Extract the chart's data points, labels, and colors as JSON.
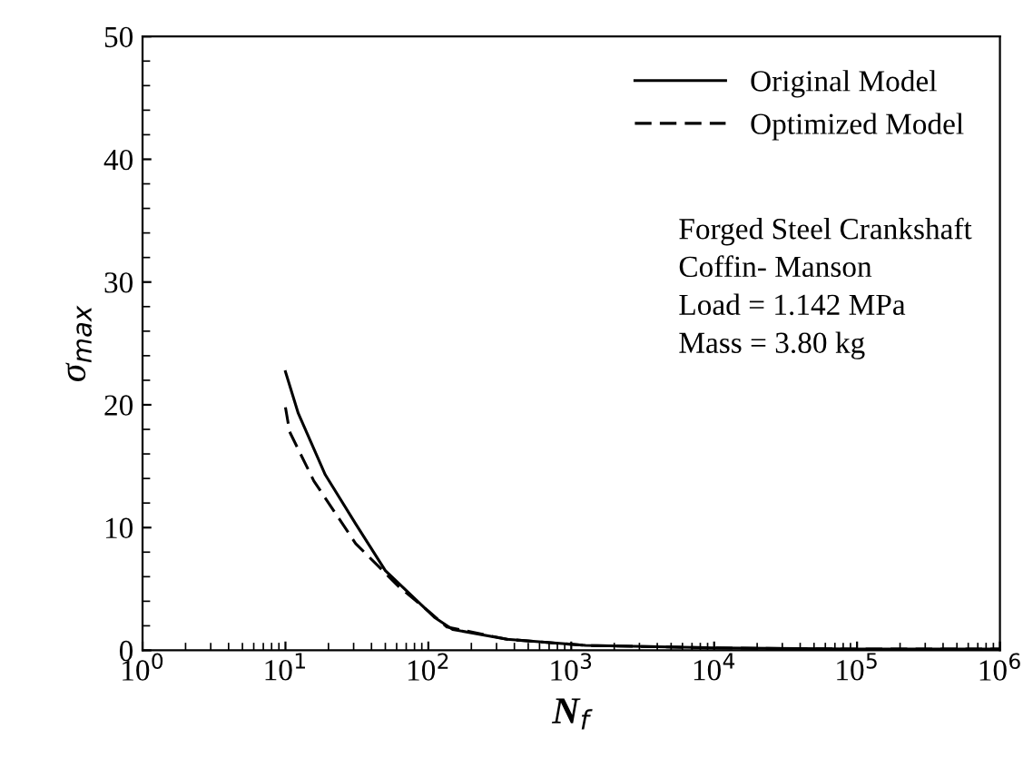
{
  "chart_data": {
    "type": "line",
    "xlabel": "N$_{f}$",
    "ylabel": "σ$_{max}$",
    "log": "x",
    "xlim": [
      1,
      1000000
    ],
    "ylim": [
      0,
      50
    ],
    "xticks": [
      {
        "value": 1,
        "label": "10$^{0}$"
      },
      {
        "value": 10,
        "label": "10$^{1}$"
      },
      {
        "value": 100,
        "label": "10$^{2}$"
      },
      {
        "value": 1000,
        "label": "10$^{3}$"
      },
      {
        "value": 10000,
        "label": "10$^{4}$"
      },
      {
        "value": 100000,
        "label": "10$^{5}$"
      },
      {
        "value": 1000000,
        "label": "10$^{6}$"
      }
    ],
    "yticks": [
      0,
      10,
      20,
      30,
      40,
      50
    ],
    "grid": false,
    "legend": "top right",
    "series": [
      {
        "name": "Original Model",
        "color": "#000000",
        "line_style": "solid",
        "x": [
          10,
          12.3,
          19,
          31,
          50,
          110,
          148,
          355,
          1260,
          10000,
          100000,
          1000000
        ],
        "values": [
          22.7,
          19.3,
          14.3,
          10.3,
          6.5,
          2.7,
          1.7,
          0.9,
          0.4,
          0.2,
          0.1,
          0.1
        ]
      },
      {
        "name": "Optimized Model",
        "color": "#000000",
        "line_style": "dashed",
        "x": [
          10,
          10.7,
          15.8,
          31,
          62,
          100,
          135,
          355,
          1260,
          10000,
          100000,
          1000000
        ],
        "values": [
          19.8,
          17.8,
          13.8,
          8.7,
          5.2,
          3.2,
          1.9,
          0.9,
          0.4,
          0.2,
          0.1,
          0.1
        ]
      }
    ],
    "annotations": [
      "Forged Steel Crankshaft",
      "Coffin- Manson",
      "Load = 1.142 MPa",
      "Mass = 3.80 kg"
    ]
  }
}
